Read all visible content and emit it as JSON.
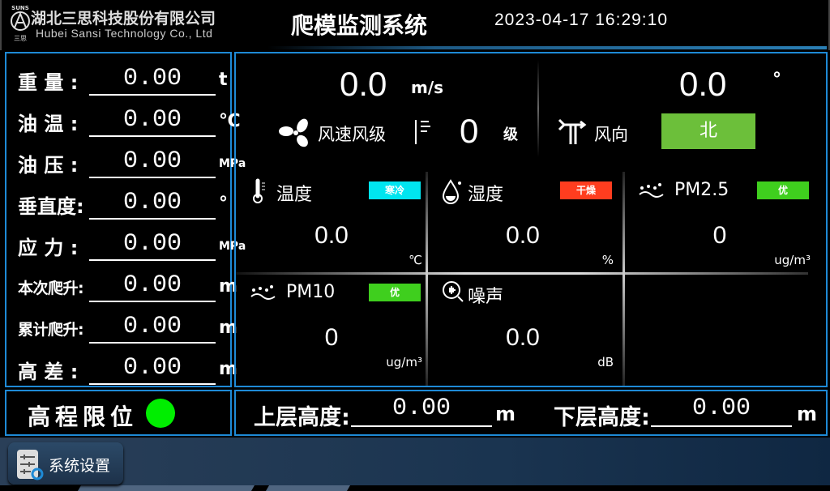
{
  "header": {
    "logo_small": "SUNS",
    "logo_mark": "三思",
    "company_cn": "湖北三思科技股份有限公司",
    "company_en": "Hubei Sansi Technology Co., Ltd",
    "title": "爬模监测系统",
    "datetime": "2023-04-17 16:29:10"
  },
  "left": {
    "rows": [
      {
        "label": "重 量 :",
        "value": "0.00",
        "unit": "t"
      },
      {
        "label": "油 温 :",
        "value": "0.00",
        "unit": "℃"
      },
      {
        "label": "油 压 :",
        "value": "0.00",
        "unit": "MPa"
      },
      {
        "label": "垂直度:",
        "value": "0.00",
        "unit": "°"
      },
      {
        "label": "应 力 :",
        "value": "0.00",
        "unit": "MPa"
      },
      {
        "label": "本次爬升:",
        "value": "0.00",
        "unit": "m"
      },
      {
        "label": "累计爬升:",
        "value": "0.00",
        "unit": "m"
      },
      {
        "label": "高 差 :",
        "value": "0.00",
        "unit": "m"
      }
    ]
  },
  "wind": {
    "speed": "0.0",
    "speed_unit": "m/s",
    "speed_label": "风速风级",
    "level": "0",
    "level_unit": "级",
    "direction_deg": "0.0",
    "deg_unit": "°",
    "direction_label": "风向",
    "direction": "北",
    "direction_color": "#6cbf3a"
  },
  "env": [
    {
      "name": "温度",
      "value": "0.0",
      "unit": "℃",
      "badge": "寒冷",
      "badge_color": "#00e5f0",
      "icon": "thermometer-icon"
    },
    {
      "name": "湿度",
      "value": "0.0",
      "unit": "%",
      "badge": "干燥",
      "badge_color": "#ff3d1f",
      "icon": "water-drop-icon"
    },
    {
      "name": "PM2.5",
      "value": "0",
      "unit": "ug/m³",
      "badge": "优",
      "badge_color": "#3fcf1e",
      "icon": "dust-icon"
    },
    {
      "name": "PM10",
      "value": "0",
      "unit": "ug/m³",
      "badge": "优",
      "badge_color": "#3fcf1e",
      "icon": "dust-icon"
    },
    {
      "name": "噪声",
      "value": "0.0",
      "unit": "dB",
      "icon": "noise-icon"
    }
  ],
  "limit": {
    "label": "高程限位",
    "status_color": "#00ee00"
  },
  "heights": {
    "upper_label": "上层高度:",
    "upper_value": "0.00",
    "upper_unit": "m",
    "lower_label": "下层高度:",
    "lower_value": "0.00",
    "lower_unit": "m"
  },
  "footer": {
    "settings_label": "系统设置"
  }
}
